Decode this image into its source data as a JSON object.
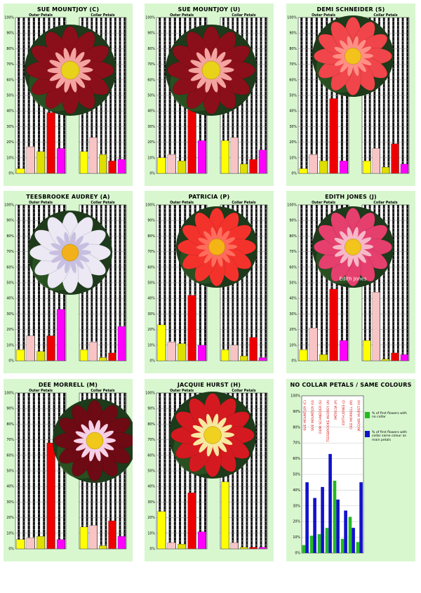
{
  "colors": {
    "panel_bg": "#d8f7cf",
    "yellow": "#ffff00",
    "pink": "#f9c4c4",
    "olive": "#dede00",
    "red": "#ee0000",
    "magenta": "#ff00ff",
    "green": "#22bb22",
    "blue": "#1111cc"
  },
  "chart_data": [
    {
      "type": "bar",
      "title": "SUE MOUNTJOY (C)",
      "flower": {
        "petal": "#8b0f1a",
        "petal_hi": "#f3a3a0",
        "center": "#e8d21a"
      },
      "outer": {
        "label": "Outer Petals",
        "values": [
          3,
          17,
          14,
          39,
          16
        ]
      },
      "collar": {
        "label": "Collar Petals",
        "values": [
          14,
          23,
          12,
          8,
          9
        ]
      }
    },
    {
      "type": "bar",
      "title": "SUE MOUNTJOY (U)",
      "flower": {
        "petal": "#8b0f1a",
        "petal_hi": "#f3a3a0",
        "center": "#e8d21a"
      },
      "outer": {
        "label": "Outer Petals",
        "values": [
          10,
          12,
          8,
          44,
          21
        ]
      },
      "collar": {
        "label": "Collar Petals",
        "values": [
          21,
          23,
          6,
          9,
          15
        ]
      }
    },
    {
      "type": "bar",
      "title": "DEMI SCHNEIDER (S)",
      "flower": {
        "petal": "#f0454a",
        "petal_hi": "#ff8f86",
        "center": "#f4c21c"
      },
      "outer": {
        "label": "Outer Petals",
        "values": [
          3,
          12,
          8,
          48,
          8
        ]
      },
      "collar": {
        "label": "Collar Petals",
        "values": [
          8,
          16,
          4,
          19,
          6
        ]
      }
    },
    {
      "type": "bar",
      "title": "TEESBROOKE AUDREY (A)",
      "flower": {
        "petal": "#ece8f4",
        "petal_hi": "#c8bfe0",
        "center": "#f2b01a"
      },
      "outer": {
        "label": "Outer Petals",
        "values": [
          7,
          16,
          6,
          16,
          33
        ]
      },
      "collar": {
        "label": "Collar Petals",
        "values": [
          7,
          12,
          2,
          5,
          22
        ]
      }
    },
    {
      "type": "bar",
      "title": "PATRICIA (P)",
      "flower": {
        "petal": "#f4322c",
        "petal_hi": "#ff6c5c",
        "center": "#f4b416"
      },
      "outer": {
        "label": "Outer Petals",
        "values": [
          23,
          12,
          11,
          42,
          10
        ]
      },
      "collar": {
        "label": "Collar Petals",
        "values": [
          7,
          10,
          3,
          15,
          2
        ]
      }
    },
    {
      "type": "bar",
      "title": "EDITH JONES (J)",
      "flower": {
        "petal": "#e53f6e",
        "petal_hi": "#f6b8c8",
        "center": "#f2c41c"
      },
      "photo_caption": "Edith Jones",
      "outer": {
        "label": "Outer Petals",
        "values": [
          7,
          21,
          4,
          46,
          13
        ]
      },
      "collar": {
        "label": "Collar Petals",
        "values": [
          13,
          44,
          1,
          5,
          4
        ]
      }
    },
    {
      "type": "bar",
      "title": "DEE MORRELL (M)",
      "flower": {
        "petal": "#6e0a14",
        "petal_hi": "#f6d0e6",
        "center": "#f0c81a"
      },
      "outer": {
        "label": "Outer Petals",
        "values": [
          6,
          7,
          8,
          68,
          6
        ]
      },
      "collar": {
        "label": "Collar Petals",
        "values": [
          14,
          15,
          2,
          18,
          8
        ]
      }
    },
    {
      "type": "bar",
      "title": "JACQUIE HURST (H)",
      "flower": {
        "petal": "#d41a20",
        "petal_hi": "#f7e8a0",
        "center": "#f0d020"
      },
      "outer": {
        "label": "Outer Petals",
        "values": [
          24,
          4,
          3,
          36,
          11
        ]
      },
      "collar": {
        "label": "Collar Petals",
        "values": [
          43,
          4,
          1,
          1,
          1
        ]
      }
    },
    {
      "type": "bar",
      "title": "NO COLLAR PETALS /  SAME COLOURS",
      "categories": [
        "SUE MOUNTJOY (C)",
        "SUE MOUNTJOY (U)",
        "DEMI SCHNEIDER (S)",
        "TEESBROOKE AUDREY (A)",
        "PATRICIA (P)",
        "EDITH JONES (J)",
        "DEE MORRELL (M)",
        "JACQUIE HURST (H)"
      ],
      "series": [
        {
          "name": "% of first flowers with no collar",
          "color": "#22bb22",
          "values": [
            5,
            11,
            12,
            16,
            46,
            9,
            23,
            7
          ]
        },
        {
          "name": "% of first flowers with collar same colour as main petals",
          "color": "#1111cc",
          "values": [
            45,
            35,
            42,
            63,
            34,
            27,
            16,
            45
          ]
        }
      ],
      "ylim": [
        0,
        100
      ]
    }
  ],
  "axis_ticks": [
    "0%",
    "10%",
    "20%",
    "30%",
    "40%",
    "50%",
    "60%",
    "70%",
    "80%",
    "90%",
    "100%"
  ]
}
